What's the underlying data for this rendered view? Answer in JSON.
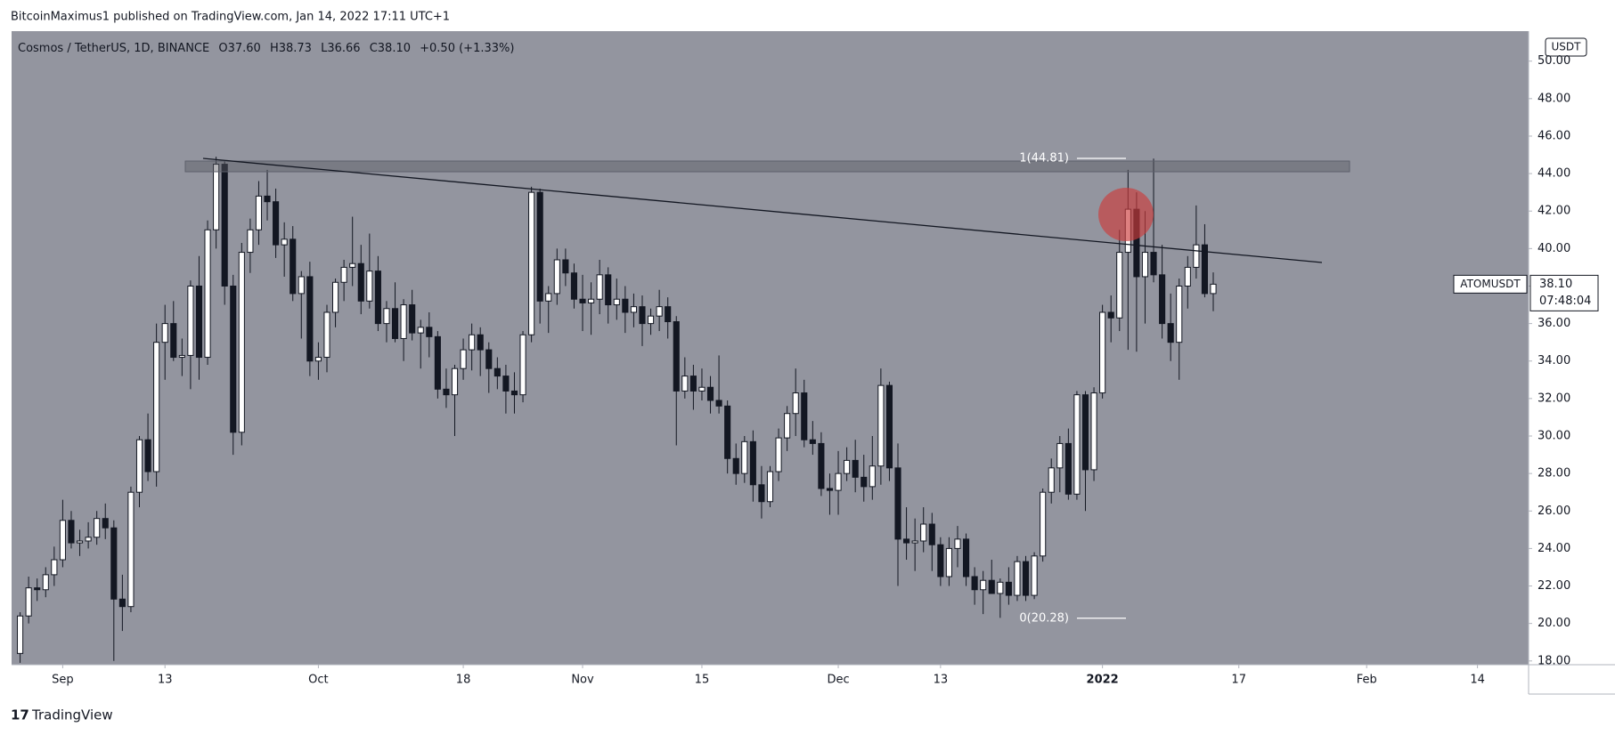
{
  "publisher": "BitcoinMaximus1 published on TradingView.com, Jan 14, 2022 17:11 UTC+1",
  "footer": "TradingView",
  "chart_data": {
    "type": "candlestick",
    "header": {
      "symbol": "Cosmos / TetherUS, 1D, BINANCE",
      "o_label": "O",
      "o": "37.60",
      "h_label": "H",
      "h": "38.73",
      "l_label": "L",
      "l": "36.66",
      "c_label": "C",
      "c": "38.10",
      "change": "+0.50 (+1.33%)"
    },
    "currency": "USDT",
    "price_label": {
      "symbol": "ATOMUSDT",
      "price": "38.10",
      "countdown": "07:48:04"
    },
    "fib_levels": [
      {
        "value": 44.81,
        "label": "1(44.81)"
      },
      {
        "value": 20.28,
        "label": "0(20.28)"
      }
    ],
    "xlim": [
      "2021-08-26",
      "2022-02-20"
    ],
    "xticks": [
      {
        "value": "2021-09-01",
        "label": "Sep"
      },
      {
        "value": "2021-09-13",
        "label": "13"
      },
      {
        "value": "2021-10-01",
        "label": "Oct"
      },
      {
        "value": "2021-10-18",
        "label": "18"
      },
      {
        "value": "2021-11-01",
        "label": "Nov"
      },
      {
        "value": "2021-11-15",
        "label": "15"
      },
      {
        "value": "2021-12-01",
        "label": "Dec"
      },
      {
        "value": "2021-12-13",
        "label": "13"
      },
      {
        "value": "2022-01-01",
        "label": "2022"
      },
      {
        "value": "2022-01-17",
        "label": "17"
      },
      {
        "value": "2022-02-01",
        "label": "Feb"
      },
      {
        "value": "2022-02-14",
        "label": "14"
      }
    ],
    "ylim": [
      17.8,
      51.6
    ],
    "yticks": [
      {
        "value": 18,
        "label": "18.00"
      },
      {
        "value": 20,
        "label": "20.00"
      },
      {
        "value": 22,
        "label": "22.00"
      },
      {
        "value": 24,
        "label": "24.00"
      },
      {
        "value": 26,
        "label": "26.00"
      },
      {
        "value": 28,
        "label": "28.00"
      },
      {
        "value": 30,
        "label": "30.00"
      },
      {
        "value": 32,
        "label": "32.00"
      },
      {
        "value": 34,
        "label": "34.00"
      },
      {
        "value": 36,
        "label": "36.00"
      },
      {
        "value": 38,
        "label": "38.00"
      },
      {
        "value": 40,
        "label": "40.00"
      },
      {
        "value": 42,
        "label": "42.00"
      },
      {
        "value": 44,
        "label": "44.00"
      },
      {
        "value": 46,
        "label": "46.00"
      },
      {
        "value": 48,
        "label": "48.00"
      },
      {
        "value": 50,
        "label": "50.00"
      }
    ],
    "x": [
      "2021-08-27",
      "2021-08-28",
      "2021-08-29",
      "2021-08-30",
      "2021-08-31",
      "2021-09-01",
      "2021-09-02",
      "2021-09-03",
      "2021-09-04",
      "2021-09-05",
      "2021-09-06",
      "2021-09-07",
      "2021-09-08",
      "2021-09-09",
      "2021-09-10",
      "2021-09-11",
      "2021-09-12",
      "2021-09-13",
      "2021-09-14",
      "2021-09-15",
      "2021-09-16",
      "2021-09-17",
      "2021-09-18",
      "2021-09-19",
      "2021-09-20",
      "2021-09-21",
      "2021-09-22",
      "2021-09-23",
      "2021-09-24",
      "2021-09-25",
      "2021-09-26",
      "2021-09-27",
      "2021-09-28",
      "2021-09-29",
      "2021-09-30",
      "2021-10-01",
      "2021-10-02",
      "2021-10-03",
      "2021-10-04",
      "2021-10-05",
      "2021-10-06",
      "2021-10-07",
      "2021-10-08",
      "2021-10-09",
      "2021-10-10",
      "2021-10-11",
      "2021-10-12",
      "2021-10-13",
      "2021-10-14",
      "2021-10-15",
      "2021-10-16",
      "2021-10-17",
      "2021-10-18",
      "2021-10-19",
      "2021-10-20",
      "2021-10-21",
      "2021-10-22",
      "2021-10-23",
      "2021-10-24",
      "2021-10-25",
      "2021-10-26",
      "2021-10-27",
      "2021-10-28",
      "2021-10-29",
      "2021-10-30",
      "2021-10-31",
      "2021-11-01",
      "2021-11-02",
      "2021-11-03",
      "2021-11-04",
      "2021-11-05",
      "2021-11-06",
      "2021-11-07",
      "2021-11-08",
      "2021-11-09",
      "2021-11-10",
      "2021-11-11",
      "2021-11-12",
      "2021-11-13",
      "2021-11-14",
      "2021-11-15",
      "2021-11-16",
      "2021-11-17",
      "2021-11-18",
      "2021-11-19",
      "2021-11-20",
      "2021-11-21",
      "2021-11-22",
      "2021-11-23",
      "2021-11-24",
      "2021-11-25",
      "2021-11-26",
      "2021-11-27",
      "2021-11-28",
      "2021-11-29",
      "2021-11-30",
      "2021-12-01",
      "2021-12-02",
      "2021-12-03",
      "2021-12-04",
      "2021-12-05",
      "2021-12-06",
      "2021-12-07",
      "2021-12-08",
      "2021-12-09",
      "2021-12-10",
      "2021-12-11",
      "2021-12-12",
      "2021-12-13",
      "2021-12-14",
      "2021-12-15",
      "2021-12-16",
      "2021-12-17",
      "2021-12-18",
      "2021-12-19",
      "2021-12-20",
      "2021-12-21",
      "2021-12-22",
      "2021-12-23",
      "2021-12-24",
      "2021-12-25",
      "2021-12-26",
      "2021-12-27",
      "2021-12-28",
      "2021-12-29",
      "2021-12-30",
      "2021-12-31",
      "2022-01-01",
      "2022-01-02",
      "2022-01-03",
      "2022-01-04",
      "2022-01-05",
      "2022-01-06",
      "2022-01-07",
      "2022-01-08",
      "2022-01-09",
      "2022-01-10",
      "2022-01-11",
      "2022-01-12",
      "2022-01-13",
      "2022-01-14"
    ],
    "ohlc": [
      [
        18.4,
        20.6,
        17.9,
        20.4
      ],
      [
        20.4,
        22.5,
        20.0,
        21.9
      ],
      [
        21.9,
        22.4,
        21.2,
        21.8
      ],
      [
        21.8,
        23.0,
        21.4,
        22.6
      ],
      [
        22.6,
        24.1,
        22.0,
        23.4
      ],
      [
        23.4,
        26.6,
        23.0,
        25.5
      ],
      [
        25.5,
        26.0,
        24.0,
        24.3
      ],
      [
        24.3,
        25.0,
        23.6,
        24.4
      ],
      [
        24.4,
        25.4,
        24.0,
        24.6
      ],
      [
        24.6,
        26.0,
        24.2,
        25.6
      ],
      [
        25.6,
        26.4,
        24.5,
        25.1
      ],
      [
        25.1,
        25.5,
        18.0,
        21.3
      ],
      [
        21.3,
        22.6,
        19.6,
        20.9
      ],
      [
        20.9,
        27.3,
        20.6,
        27.0
      ],
      [
        27.0,
        30.0,
        26.2,
        29.8
      ],
      [
        29.8,
        31.2,
        27.6,
        28.1
      ],
      [
        28.1,
        36.0,
        27.3,
        35.0
      ],
      [
        35.0,
        37.0,
        33.0,
        36.0
      ],
      [
        36.0,
        37.2,
        34.0,
        34.2
      ],
      [
        34.2,
        35.2,
        33.2,
        34.3
      ],
      [
        34.3,
        38.3,
        32.5,
        38.0
      ],
      [
        38.0,
        39.6,
        33.0,
        34.2
      ],
      [
        34.2,
        41.5,
        33.8,
        41.0
      ],
      [
        41.0,
        44.9,
        40.0,
        44.5
      ],
      [
        44.5,
        44.7,
        37.0,
        38.0
      ],
      [
        38.0,
        38.6,
        29.0,
        30.2
      ],
      [
        30.2,
        40.3,
        29.5,
        39.8
      ],
      [
        39.8,
        41.6,
        38.7,
        41.0
      ],
      [
        41.0,
        43.6,
        40.2,
        42.8
      ],
      [
        42.8,
        44.2,
        41.5,
        42.5
      ],
      [
        42.5,
        43.2,
        39.5,
        40.2
      ],
      [
        40.2,
        41.4,
        38.5,
        40.5
      ],
      [
        40.5,
        41.2,
        37.2,
        37.6
      ],
      [
        37.6,
        38.8,
        35.2,
        38.5
      ],
      [
        38.5,
        39.3,
        33.2,
        34.0
      ],
      [
        34.0,
        35.0,
        33.0,
        34.2
      ],
      [
        34.2,
        37.0,
        33.4,
        36.6
      ],
      [
        36.6,
        38.4,
        35.8,
        38.2
      ],
      [
        38.2,
        39.4,
        37.2,
        39.0
      ],
      [
        39.0,
        41.7,
        38.0,
        39.2
      ],
      [
        39.2,
        40.2,
        36.5,
        37.2
      ],
      [
        37.2,
        40.8,
        36.8,
        38.8
      ],
      [
        38.8,
        39.6,
        35.6,
        36.0
      ],
      [
        36.0,
        37.2,
        35.0,
        36.8
      ],
      [
        36.8,
        38.2,
        35.0,
        35.2
      ],
      [
        35.2,
        37.3,
        34.0,
        37.0
      ],
      [
        37.0,
        37.8,
        35.1,
        35.5
      ],
      [
        35.5,
        36.2,
        33.6,
        35.8
      ],
      [
        35.8,
        36.6,
        34.2,
        35.3
      ],
      [
        35.3,
        35.6,
        32.0,
        32.5
      ],
      [
        32.5,
        33.6,
        31.5,
        32.2
      ],
      [
        32.2,
        33.8,
        30.0,
        33.6
      ],
      [
        33.6,
        35.2,
        33.0,
        34.6
      ],
      [
        34.6,
        36.0,
        33.5,
        35.4
      ],
      [
        35.4,
        35.8,
        33.2,
        34.6
      ],
      [
        34.6,
        35.0,
        32.3,
        33.6
      ],
      [
        33.6,
        34.2,
        32.5,
        33.2
      ],
      [
        33.2,
        33.8,
        31.2,
        32.4
      ],
      [
        32.4,
        33.4,
        31.2,
        32.2
      ],
      [
        32.2,
        35.6,
        31.8,
        35.4
      ],
      [
        35.4,
        43.3,
        35.0,
        43.0
      ],
      [
        43.0,
        43.2,
        36.0,
        37.2
      ],
      [
        37.2,
        38.0,
        35.5,
        37.6
      ],
      [
        37.6,
        40.0,
        37.0,
        39.4
      ],
      [
        39.4,
        40.0,
        38.0,
        38.7
      ],
      [
        38.7,
        39.2,
        36.8,
        37.3
      ],
      [
        37.3,
        38.6,
        35.6,
        37.1
      ],
      [
        37.1,
        38.2,
        35.4,
        37.3
      ],
      [
        37.3,
        39.4,
        36.5,
        38.6
      ],
      [
        38.6,
        39.0,
        36.0,
        37.0
      ],
      [
        37.0,
        38.4,
        36.2,
        37.3
      ],
      [
        37.3,
        38.0,
        35.5,
        36.6
      ],
      [
        36.6,
        37.6,
        35.8,
        36.9
      ],
      [
        36.9,
        37.5,
        34.8,
        36.0
      ],
      [
        36.0,
        36.8,
        35.4,
        36.4
      ],
      [
        36.4,
        37.8,
        35.6,
        36.9
      ],
      [
        36.9,
        37.4,
        35.2,
        36.1
      ],
      [
        36.1,
        36.4,
        29.5,
        32.4
      ],
      [
        32.4,
        34.2,
        32.0,
        33.2
      ],
      [
        33.2,
        33.8,
        31.4,
        32.4
      ],
      [
        32.4,
        33.6,
        31.9,
        32.6
      ],
      [
        32.6,
        33.2,
        31.2,
        31.9
      ],
      [
        31.9,
        34.3,
        31.2,
        31.6
      ],
      [
        31.6,
        31.9,
        28.0,
        28.8
      ],
      [
        28.8,
        29.6,
        27.4,
        28.0
      ],
      [
        28.0,
        30.0,
        27.5,
        29.7
      ],
      [
        29.7,
        30.3,
        26.5,
        27.4
      ],
      [
        27.4,
        28.4,
        25.6,
        26.5
      ],
      [
        26.5,
        28.4,
        26.2,
        28.1
      ],
      [
        28.1,
        30.4,
        27.6,
        29.9
      ],
      [
        29.9,
        31.6,
        29.2,
        31.2
      ],
      [
        31.2,
        33.6,
        30.0,
        32.3
      ],
      [
        32.3,
        33.0,
        29.4,
        29.8
      ],
      [
        29.8,
        30.8,
        29.0,
        29.6
      ],
      [
        29.6,
        30.2,
        26.8,
        27.2
      ],
      [
        27.2,
        28.0,
        25.8,
        27.1
      ],
      [
        27.1,
        29.2,
        25.8,
        28.0
      ],
      [
        28.0,
        29.4,
        27.6,
        28.7
      ],
      [
        28.7,
        29.8,
        27.0,
        27.8
      ],
      [
        27.8,
        29.0,
        26.5,
        27.3
      ],
      [
        27.3,
        30.0,
        26.6,
        28.4
      ],
      [
        28.4,
        33.6,
        27.4,
        32.7
      ],
      [
        32.7,
        32.9,
        27.6,
        28.3
      ],
      [
        28.3,
        29.6,
        22.0,
        24.5
      ],
      [
        24.5,
        26.2,
        23.4,
        24.3
      ],
      [
        24.3,
        25.6,
        22.8,
        24.4
      ],
      [
        24.4,
        26.2,
        23.8,
        25.3
      ],
      [
        25.3,
        25.9,
        22.8,
        24.2
      ],
      [
        24.2,
        24.6,
        22.0,
        22.5
      ],
      [
        22.5,
        24.6,
        22.0,
        24.0
      ],
      [
        24.0,
        25.2,
        23.0,
        24.5
      ],
      [
        24.5,
        24.8,
        22.0,
        22.5
      ],
      [
        22.5,
        23.0,
        21.0,
        21.8
      ],
      [
        21.8,
        22.8,
        20.5,
        22.3
      ],
      [
        22.3,
        23.4,
        21.6,
        21.6
      ],
      [
        21.6,
        22.4,
        20.3,
        22.2
      ],
      [
        22.2,
        23.0,
        21.0,
        21.5
      ],
      [
        21.5,
        23.6,
        21.2,
        23.3
      ],
      [
        23.3,
        23.6,
        21.2,
        21.5
      ],
      [
        21.5,
        23.8,
        21.3,
        23.6
      ],
      [
        23.6,
        27.2,
        23.3,
        27.0
      ],
      [
        27.0,
        28.8,
        26.4,
        28.3
      ],
      [
        28.3,
        30.0,
        27.0,
        29.6
      ],
      [
        29.6,
        30.4,
        26.6,
        26.9
      ],
      [
        26.9,
        32.4,
        26.6,
        32.2
      ],
      [
        32.2,
        32.4,
        26.0,
        28.2
      ],
      [
        28.2,
        32.6,
        27.6,
        32.3
      ],
      [
        32.3,
        37.0,
        32.0,
        36.6
      ],
      [
        36.6,
        37.5,
        35.0,
        36.3
      ],
      [
        36.3,
        41.0,
        35.6,
        39.8
      ],
      [
        39.8,
        44.2,
        34.6,
        42.1
      ],
      [
        42.1,
        43.0,
        34.5,
        38.5
      ],
      [
        38.5,
        42.0,
        36.0,
        39.8
      ],
      [
        39.8,
        44.8,
        38.2,
        38.6
      ],
      [
        38.6,
        40.2,
        35.2,
        36.0
      ],
      [
        36.0,
        37.6,
        34.0,
        35.0
      ],
      [
        35.0,
        38.4,
        33.0,
        38.0
      ],
      [
        38.0,
        39.6,
        36.8,
        39.0
      ],
      [
        39.0,
        42.3,
        38.4,
        40.2
      ],
      [
        40.2,
        41.3,
        37.4,
        37.6
      ],
      [
        37.6,
        38.73,
        36.66,
        38.1
      ]
    ],
    "up_color": "#ffffff",
    "down_color": "#131722"
  }
}
